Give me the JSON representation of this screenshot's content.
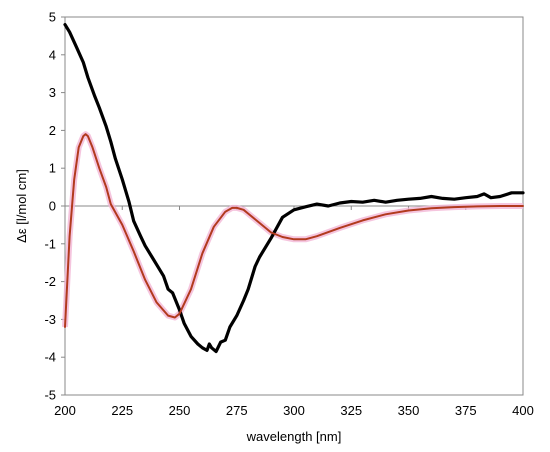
{
  "chart_data": {
    "type": "line",
    "title": "",
    "xlabel": "wavelength  [nm]",
    "ylabel": "Δε  [l/mol cm]",
    "xlim": [
      200,
      400
    ],
    "ylim": [
      -5,
      5
    ],
    "xticks": [
      200,
      225,
      250,
      275,
      300,
      325,
      350,
      375,
      400
    ],
    "yticks": [
      -5,
      -4,
      -3,
      -2,
      -1,
      0,
      1,
      2,
      3,
      4,
      5
    ],
    "grid": false,
    "legend": "none",
    "series": [
      {
        "color": "#000000",
        "x": [
          200,
          202,
          205,
          208,
          210,
          213,
          215,
          218,
          220,
          222,
          225,
          228,
          230,
          233,
          235,
          238,
          240,
          243,
          245,
          247,
          250,
          252,
          255,
          258,
          260,
          262,
          263,
          264,
          266,
          268,
          270,
          272,
          275,
          278,
          280,
          283,
          285,
          290,
          295,
          300,
          305,
          310,
          315,
          320,
          325,
          330,
          335,
          340,
          345,
          350,
          355,
          360,
          365,
          370,
          375,
          380,
          383,
          386,
          390,
          395,
          400
        ],
        "y": [
          4.8,
          4.6,
          4.2,
          3.8,
          3.4,
          2.9,
          2.6,
          2.1,
          1.7,
          1.25,
          0.7,
          0.1,
          -0.4,
          -0.8,
          -1.05,
          -1.35,
          -1.55,
          -1.85,
          -2.2,
          -2.3,
          -2.75,
          -3.1,
          -3.45,
          -3.65,
          -3.75,
          -3.82,
          -3.65,
          -3.75,
          -3.85,
          -3.6,
          -3.55,
          -3.2,
          -2.9,
          -2.5,
          -2.2,
          -1.6,
          -1.35,
          -0.85,
          -0.3,
          -0.1,
          -0.02,
          0.05,
          0.0,
          0.08,
          0.12,
          0.1,
          0.15,
          0.1,
          0.15,
          0.18,
          0.2,
          0.25,
          0.2,
          0.18,
          0.22,
          0.25,
          0.32,
          0.22,
          0.25,
          0.35,
          0.35
        ]
      },
      {
        "color": "#b23a1e",
        "x": [
          200,
          202,
          204,
          206,
          208,
          209,
          210,
          212,
          215,
          218,
          220,
          225,
          230,
          235,
          240,
          245,
          248,
          250,
          255,
          260,
          265,
          270,
          273,
          275,
          278,
          280,
          285,
          290,
          295,
          300,
          305,
          310,
          320,
          330,
          340,
          350,
          360,
          370,
          380,
          390,
          400
        ],
        "y": [
          -3.2,
          -0.8,
          0.7,
          1.55,
          1.85,
          1.9,
          1.85,
          1.55,
          1.0,
          0.5,
          0.05,
          -0.5,
          -1.2,
          -1.95,
          -2.55,
          -2.9,
          -2.95,
          -2.85,
          -2.2,
          -1.25,
          -0.55,
          -0.15,
          -0.05,
          -0.05,
          -0.1,
          -0.2,
          -0.45,
          -0.7,
          -0.82,
          -0.88,
          -0.88,
          -0.8,
          -0.58,
          -0.38,
          -0.22,
          -0.12,
          -0.06,
          -0.03,
          -0.01,
          0.0,
          0.0
        ]
      }
    ]
  }
}
